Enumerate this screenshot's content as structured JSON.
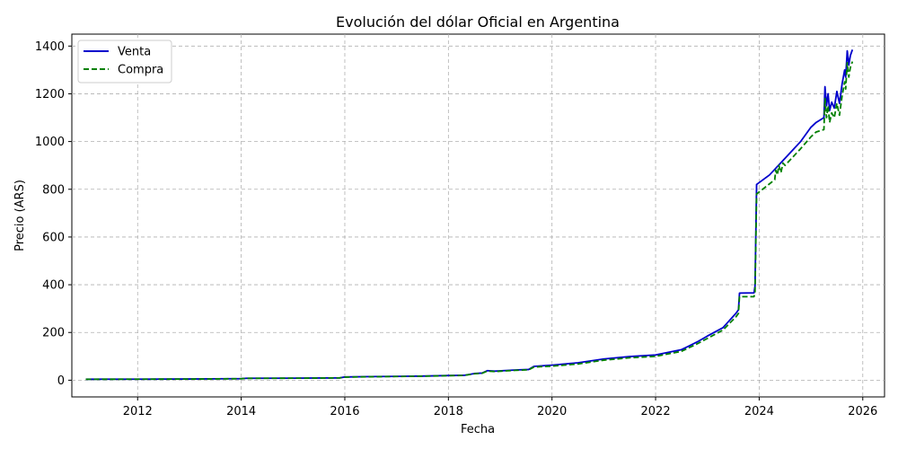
{
  "chart_data": {
    "type": "line",
    "title": "Evolución del dólar Oficial en Argentina",
    "xlabel": "Fecha",
    "ylabel": "Precio (ARS)",
    "xlim": [
      2010.73,
      2026.42
    ],
    "ylim": [
      -70,
      1450
    ],
    "xticks": [
      2012,
      2014,
      2016,
      2018,
      2020,
      2022,
      2024,
      2026
    ],
    "yticks": [
      0,
      200,
      400,
      600,
      800,
      1000,
      1200,
      1400
    ],
    "grid": true,
    "legend_position": "top-left",
    "series": [
      {
        "name": "Venta",
        "color": "#0000cc",
        "dash": "solid",
        "points": [
          [
            2011.0,
            4.0
          ],
          [
            2012.0,
            4.4
          ],
          [
            2013.0,
            4.95
          ],
          [
            2014.0,
            6.5
          ],
          [
            2014.1,
            8.0
          ],
          [
            2015.0,
            8.6
          ],
          [
            2015.9,
            9.7
          ],
          [
            2016.0,
            13.5
          ],
          [
            2016.5,
            15.0
          ],
          [
            2017.0,
            16.0
          ],
          [
            2017.5,
            17.2
          ],
          [
            2018.0,
            19.5
          ],
          [
            2018.3,
            20.5
          ],
          [
            2018.5,
            28.0
          ],
          [
            2018.65,
            30.0
          ],
          [
            2018.75,
            40.0
          ],
          [
            2018.9,
            38.0
          ],
          [
            2019.3,
            43.0
          ],
          [
            2019.55,
            45.0
          ],
          [
            2019.65,
            58.0
          ],
          [
            2019.8,
            60.0
          ],
          [
            2020.0,
            63.0
          ],
          [
            2020.5,
            73.0
          ],
          [
            2021.0,
            89.0
          ],
          [
            2021.5,
            99.0
          ],
          [
            2022.0,
            106.0
          ],
          [
            2022.5,
            128.0
          ],
          [
            2022.8,
            160.0
          ],
          [
            2023.0,
            185.0
          ],
          [
            2023.3,
            220.0
          ],
          [
            2023.55,
            280.0
          ],
          [
            2023.6,
            295.0
          ],
          [
            2023.62,
            365.0
          ],
          [
            2023.9,
            366.0
          ],
          [
            2023.92,
            395.0
          ],
          [
            2023.95,
            820.0
          ],
          [
            2024.2,
            860.0
          ],
          [
            2024.5,
            930.0
          ],
          [
            2024.8,
            1000.0
          ],
          [
            2025.0,
            1060.0
          ],
          [
            2025.1,
            1080.0
          ],
          [
            2025.25,
            1100.0
          ],
          [
            2025.27,
            1230.0
          ],
          [
            2025.3,
            1150.0
          ],
          [
            2025.33,
            1200.0
          ],
          [
            2025.36,
            1130.0
          ],
          [
            2025.4,
            1165.0
          ],
          [
            2025.45,
            1140.0
          ],
          [
            2025.5,
            1210.0
          ],
          [
            2025.55,
            1160.0
          ],
          [
            2025.6,
            1240.0
          ],
          [
            2025.65,
            1300.0
          ],
          [
            2025.67,
            1270.0
          ],
          [
            2025.7,
            1380.0
          ],
          [
            2025.73,
            1320.0
          ],
          [
            2025.76,
            1360.0
          ],
          [
            2025.8,
            1385.0
          ]
        ]
      },
      {
        "name": "Compra",
        "color": "#008000",
        "dash": "dashed",
        "points": [
          [
            2011.0,
            3.9
          ],
          [
            2012.0,
            4.3
          ],
          [
            2013.0,
            4.85
          ],
          [
            2014.0,
            6.3
          ],
          [
            2014.1,
            7.8
          ],
          [
            2015.0,
            8.4
          ],
          [
            2015.9,
            9.5
          ],
          [
            2016.0,
            13.0
          ],
          [
            2016.5,
            14.5
          ],
          [
            2017.0,
            15.5
          ],
          [
            2017.5,
            16.7
          ],
          [
            2018.0,
            19.0
          ],
          [
            2018.3,
            20.0
          ],
          [
            2018.5,
            27.0
          ],
          [
            2018.65,
            29.0
          ],
          [
            2018.75,
            38.0
          ],
          [
            2018.9,
            36.5
          ],
          [
            2019.3,
            41.5
          ],
          [
            2019.55,
            43.5
          ],
          [
            2019.65,
            55.0
          ],
          [
            2019.8,
            57.0
          ],
          [
            2020.0,
            59.0
          ],
          [
            2020.5,
            68.0
          ],
          [
            2021.0,
            84.0
          ],
          [
            2021.5,
            94.0
          ],
          [
            2022.0,
            100.0
          ],
          [
            2022.5,
            121.0
          ],
          [
            2022.8,
            152.0
          ],
          [
            2023.0,
            175.0
          ],
          [
            2023.3,
            210.0
          ],
          [
            2023.55,
            265.0
          ],
          [
            2023.6,
            280.0
          ],
          [
            2023.62,
            350.0
          ],
          [
            2023.9,
            350.0
          ],
          [
            2023.92,
            370.0
          ],
          [
            2023.95,
            780.0
          ],
          [
            2024.3,
            840.0
          ],
          [
            2024.32,
            880.0
          ],
          [
            2024.35,
            860.0
          ],
          [
            2024.38,
            900.0
          ],
          [
            2024.42,
            870.0
          ],
          [
            2024.46,
            910.0
          ],
          [
            2024.5,
            900.0
          ],
          [
            2024.8,
            970.0
          ],
          [
            2025.0,
            1020.0
          ],
          [
            2025.1,
            1040.0
          ],
          [
            2025.25,
            1050.0
          ],
          [
            2025.27,
            1180.0
          ],
          [
            2025.3,
            1100.0
          ],
          [
            2025.33,
            1150.0
          ],
          [
            2025.36,
            1080.0
          ],
          [
            2025.4,
            1120.0
          ],
          [
            2025.45,
            1100.0
          ],
          [
            2025.5,
            1160.0
          ],
          [
            2025.55,
            1110.0
          ],
          [
            2025.6,
            1190.0
          ],
          [
            2025.65,
            1250.0
          ],
          [
            2025.67,
            1220.0
          ],
          [
            2025.7,
            1330.0
          ],
          [
            2025.73,
            1270.0
          ],
          [
            2025.76,
            1310.0
          ],
          [
            2025.8,
            1335.0
          ]
        ]
      }
    ]
  }
}
